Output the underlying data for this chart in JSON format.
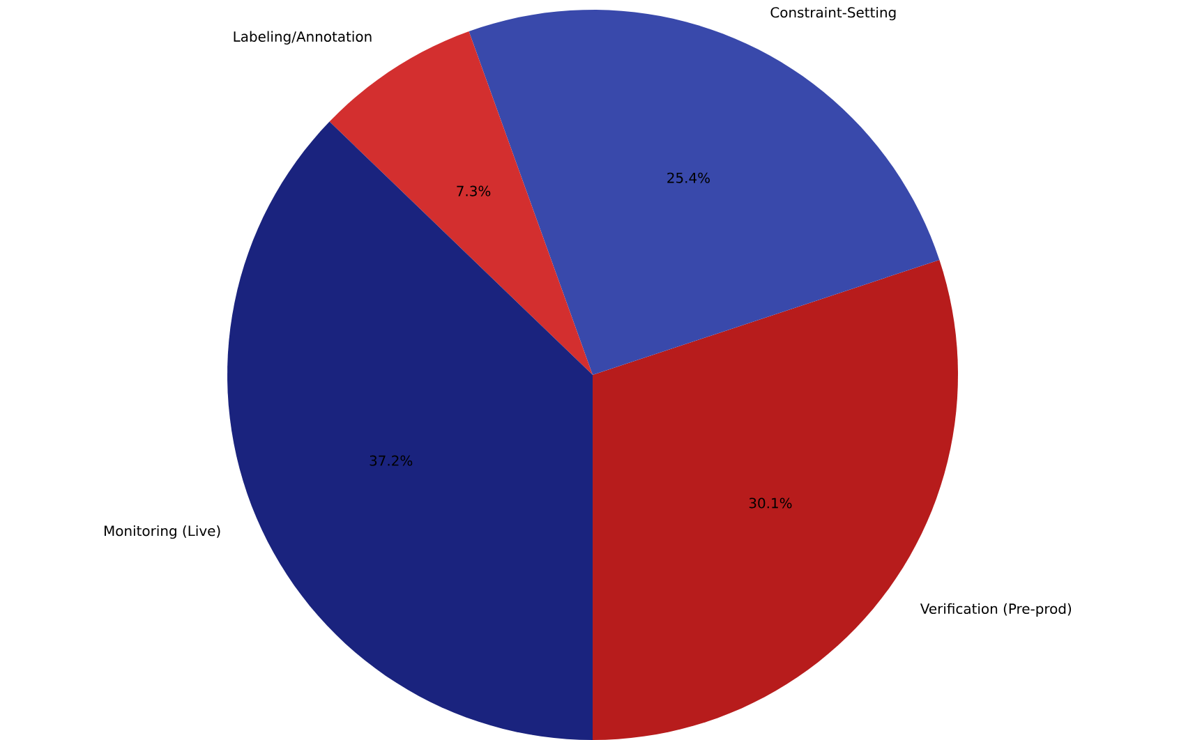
{
  "chart_data": {
    "type": "pie",
    "categories": [
      "Verification (Pre-prod)",
      "Constraint-Setting",
      "Labeling/Annotation",
      "Monitoring (Live)"
    ],
    "values": [
      30.1,
      25.4,
      7.3,
      37.2
    ],
    "value_labels": [
      "30.1%",
      "25.4%",
      "7.3%",
      "37.2%"
    ],
    "colors": [
      "#b71c1c",
      "#3949ab",
      "#d32f2f",
      "#1a237e"
    ]
  }
}
